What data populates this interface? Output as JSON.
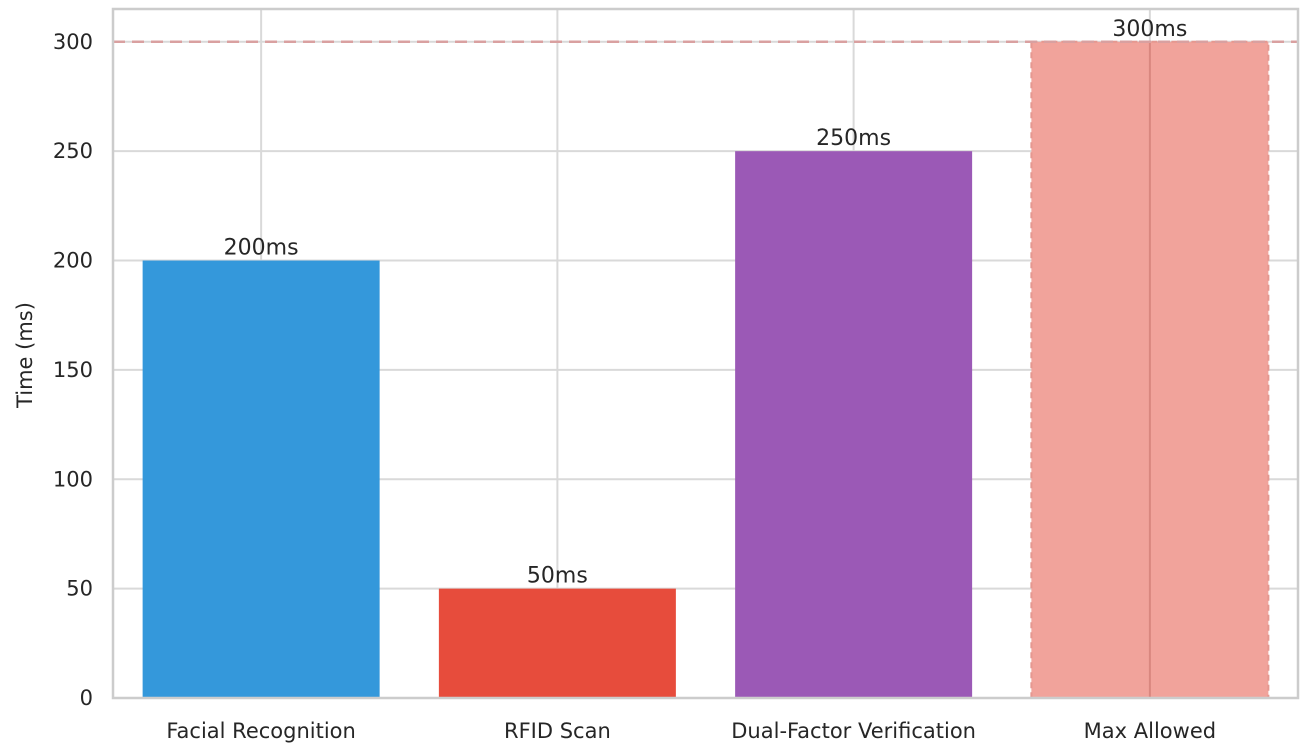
{
  "chart_data": {
    "type": "bar",
    "title": "",
    "xlabel": "",
    "ylabel": "Time (ms)",
    "categories": [
      "Facial Recognition",
      "RFID Scan",
      "Dual-Factor Verification",
      "Max Allowed"
    ],
    "values": [
      200,
      50,
      250,
      300
    ],
    "data_labels": [
      "200ms",
      "50ms",
      "250ms",
      "300ms"
    ],
    "colors": [
      "#3498db",
      "#e74c3c",
      "#9b59b6",
      "#f1a39b"
    ],
    "yticks": [
      0,
      50,
      100,
      150,
      200,
      250,
      300
    ],
    "ylim": [
      0,
      315
    ],
    "reference_line": {
      "value": 300,
      "style": "dashed",
      "color": "#d9a0a0"
    },
    "grid": true,
    "legend": "none"
  }
}
